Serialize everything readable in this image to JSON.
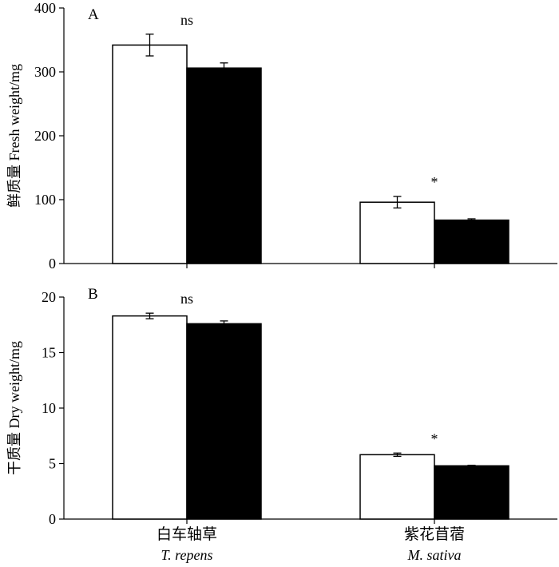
{
  "chart_data": [
    {
      "type": "bar",
      "panel_label": "A",
      "ylabel": "鲜质量  Fresh weight/mg",
      "ylim": [
        0,
        400
      ],
      "yticks": [
        0,
        100,
        200,
        300,
        400
      ],
      "categories": [
        "T. repens",
        "M. sativa"
      ],
      "series": [
        {
          "fill": "#ffffff",
          "values": [
            342,
            96
          ],
          "errors": [
            17,
            9
          ]
        },
        {
          "fill": "#000000",
          "values": [
            306,
            68
          ],
          "errors": [
            8,
            2
          ]
        }
      ],
      "significance": [
        "ns",
        "*"
      ]
    },
    {
      "type": "bar",
      "panel_label": "B",
      "ylabel": "干质量  Dry weight/mg",
      "ylim": [
        0,
        20
      ],
      "yticks": [
        0,
        5,
        10,
        15,
        20
      ],
      "categories": [
        "T. repens",
        "M. sativa"
      ],
      "series": [
        {
          "fill": "#ffffff",
          "values": [
            18.3,
            5.8
          ],
          "errors": [
            0.25,
            0.15
          ]
        },
        {
          "fill": "#000000",
          "values": [
            17.6,
            4.8
          ],
          "errors": [
            0.25,
            0.05
          ]
        }
      ],
      "significance": [
        "ns",
        "*"
      ]
    }
  ],
  "x_axis": {
    "groups": [
      {
        "label_cn": "白车轴草",
        "label_en": "T. repens"
      },
      {
        "label_cn": "紫花苜蓿",
        "label_en": "M. sativa"
      }
    ]
  }
}
